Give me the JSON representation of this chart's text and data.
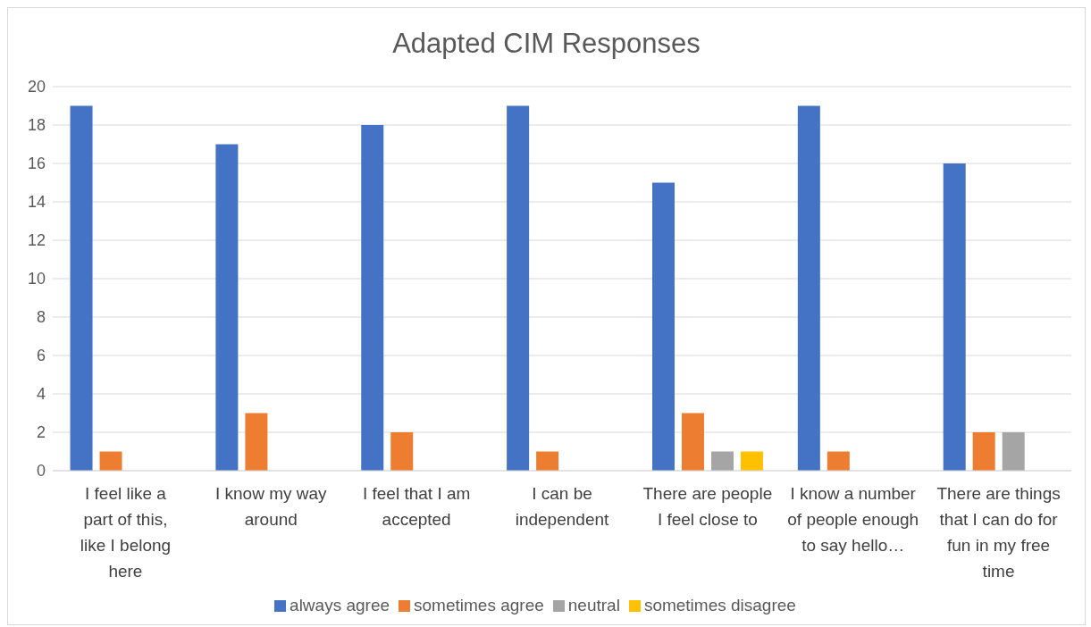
{
  "chart_data": {
    "type": "bar",
    "title": "Adapted CIM Responses",
    "categories": [
      "I feel like a part of this, like I belong here",
      "I know my way around",
      "I feel that I am accepted",
      "I can be independent",
      "There are people I feel close to",
      "I know a number of people enough to say hello…",
      "There are things that I can do for fun in my free time"
    ],
    "series": [
      {
        "name": "always agree",
        "color": "#4472c4",
        "values": [
          19,
          17,
          18,
          19,
          15,
          19,
          16
        ]
      },
      {
        "name": "sometimes agree",
        "color": "#ed7d31",
        "values": [
          1,
          3,
          2,
          1,
          3,
          1,
          2
        ]
      },
      {
        "name": "neutral",
        "color": "#a5a5a5",
        "values": [
          0,
          0,
          0,
          0,
          1,
          0,
          2
        ]
      },
      {
        "name": "sometimes disagree",
        "color": "#ffc000",
        "values": [
          0,
          0,
          0,
          0,
          1,
          0,
          0
        ]
      }
    ],
    "ylim": [
      0,
      20
    ],
    "yticks": [
      0,
      2,
      4,
      6,
      8,
      10,
      12,
      14,
      16,
      18,
      20
    ],
    "grid": "y",
    "legend": "bottom"
  }
}
